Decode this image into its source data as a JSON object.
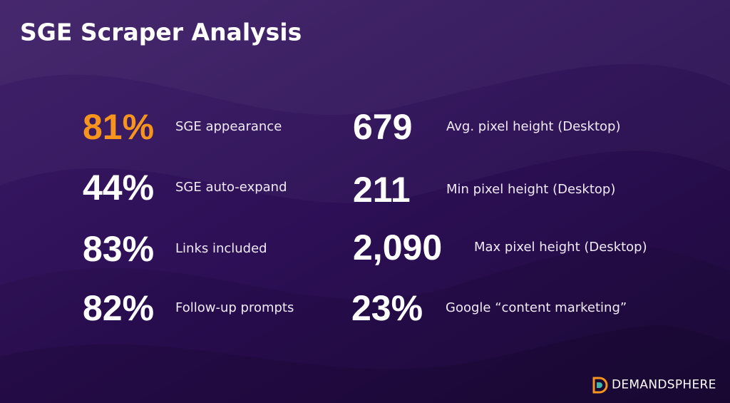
{
  "header": {
    "title": "SGE Scraper Analysis"
  },
  "left_stats": [
    {
      "value": "81%",
      "label": "SGE appearance"
    },
    {
      "value": "44%",
      "label": "SGE auto-expand"
    },
    {
      "value": "83%",
      "label": "Links included"
    },
    {
      "value": "82%",
      "label": "Follow-up prompts"
    }
  ],
  "right_stats": [
    {
      "value": "679",
      "label": "Avg. pixel height (Desktop)"
    },
    {
      "value": "211",
      "label": "Min pixel height (Desktop)"
    },
    {
      "value": "2,090",
      "label": "Max pixel height (Desktop)"
    },
    {
      "value": "23%",
      "label": "Google “content marketing”"
    }
  ],
  "logo": {
    "text": "DEMANDSPHERE"
  }
}
